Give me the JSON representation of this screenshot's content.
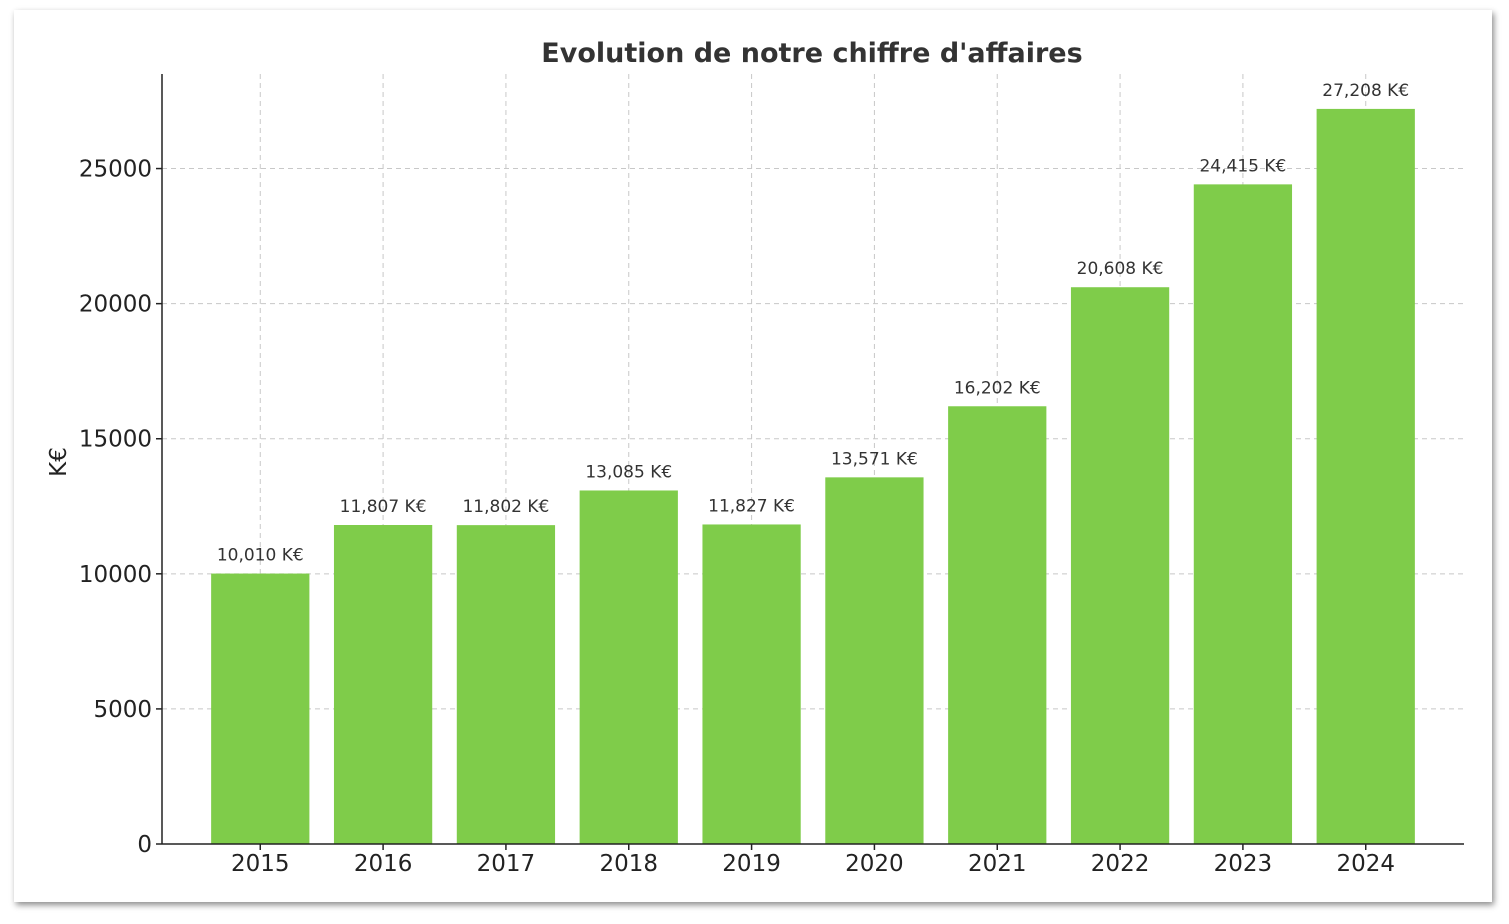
{
  "chart_data": {
    "type": "bar",
    "title": "Evolution de notre chiffre d'affaires",
    "xlabel": "",
    "ylabel": "K€",
    "categories": [
      "2015",
      "2016",
      "2017",
      "2018",
      "2019",
      "2020",
      "2021",
      "2022",
      "2023",
      "2024"
    ],
    "values": [
      10010,
      11807,
      11802,
      13085,
      11827,
      13571,
      16202,
      20608,
      24415,
      27208
    ],
    "data_labels": [
      "10,010 K€",
      "11,807 K€",
      "11,802 K€",
      "13,085 K€",
      "11,827 K€",
      "13,571 K€",
      "16,202 K€",
      "20,608 K€",
      "24,415 K€",
      "27,208 K€"
    ],
    "yticks": [
      0,
      5000,
      10000,
      15000,
      20000,
      25000
    ],
    "ylim": [
      0,
      28500
    ],
    "grid": true,
    "bar_color": "#7fcc4a"
  }
}
